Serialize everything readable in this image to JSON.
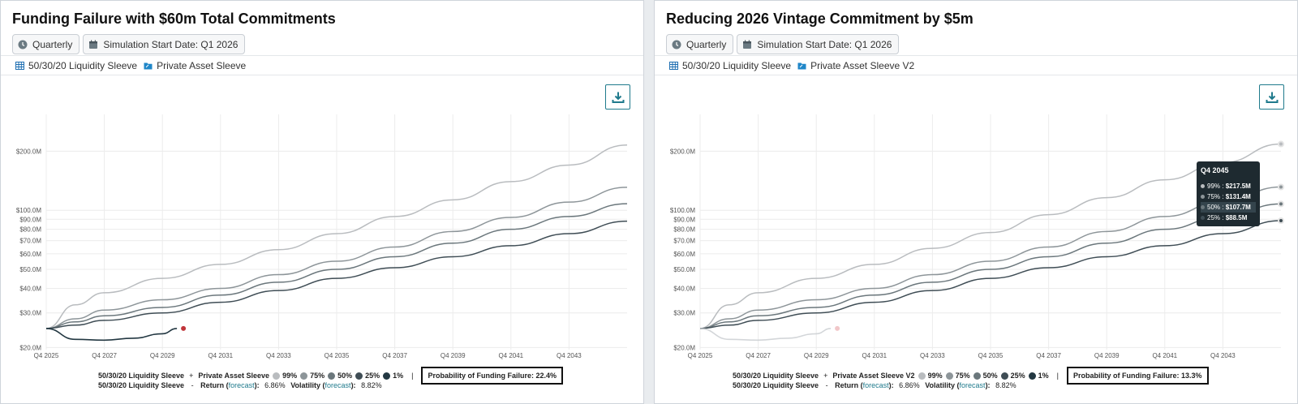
{
  "panels": [
    {
      "title": "Funding Failure with $60m Total Commitments",
      "chips": {
        "frequency": "Quarterly",
        "start": "Simulation Start Date: Q1 2026"
      },
      "sleeves": [
        "50/30/20 Liquidity Sleeve",
        "Private Asset Sleeve"
      ],
      "legend": {
        "sleeve_a": "50/30/20 Liquidity Sleeve",
        "plus": "+",
        "sleeve_b": "Private Asset Sleeve",
        "items": [
          "99%",
          "75%",
          "50%",
          "25%",
          "1%"
        ],
        "bar": "|",
        "probability": "Probability of Funding Failure: 22.4%"
      },
      "stats": {
        "sleeve": "50/30/20 Liquidity Sleeve",
        "dash": "-",
        "return_label": "Return",
        "forecast": "forecast",
        "return_value": "6.86%",
        "volatility_label": "Volatility",
        "volatility_value": "8.82%"
      }
    },
    {
      "title": "Reducing 2026 Vintage Commitment by $5m",
      "chips": {
        "frequency": "Quarterly",
        "start": "Simulation Start Date: Q1 2026"
      },
      "sleeves": [
        "50/30/20 Liquidity Sleeve",
        "Private Asset Sleeve V2"
      ],
      "legend": {
        "sleeve_a": "50/30/20 Liquidity Sleeve",
        "plus": "+",
        "sleeve_b": "Private Asset Sleeve V2",
        "items": [
          "99%",
          "75%",
          "50%",
          "25%",
          "1%"
        ],
        "bar": "|",
        "probability": "Probability of Funding Failure: 13.3%"
      },
      "stats": {
        "sleeve": "50/30/20 Liquidity Sleeve",
        "dash": "-",
        "return_label": "Return",
        "forecast": "forecast",
        "return_value": "6.86%",
        "volatility_label": "Volatility",
        "volatility_value": "8.82%"
      },
      "tooltip": {
        "title": "Q4 2045",
        "rows": [
          {
            "label": "99%",
            "sep": " : ",
            "value": "$217.5M"
          },
          {
            "label": "75%",
            "sep": " : ",
            "value": "$131.4M"
          },
          {
            "label": "50%",
            "sep": " : ",
            "value": "$107.7M"
          },
          {
            "label": "25%",
            "sep": " : ",
            "value": "$88.5M"
          }
        ]
      }
    }
  ],
  "colors": {
    "p99": "#b9bcbf",
    "p75": "#8d9599",
    "p50": "#6b777c",
    "p25": "#3f4d55",
    "p1": "#233842",
    "accent": "#1f7a8c",
    "failure_dot": "#c0353a"
  },
  "chart_data": [
    {
      "type": "line",
      "title": "Funding Failure with $60m Total Commitments",
      "y_scale": "log",
      "ylim": [
        19500000,
        280000000
      ],
      "y_ticks": [
        "$20.0M",
        "$30.0M",
        "$40.0M",
        "$50.0M",
        "$60.0M",
        "$70.0M",
        "$80.0M",
        "$90.0M",
        "$100.0M",
        "$200.0M"
      ],
      "x_ticks": [
        "Q4 2025",
        "Q4 2027",
        "Q4 2029",
        "Q4 2031",
        "Q4 2033",
        "Q4 2035",
        "Q4 2037",
        "Q4 2039",
        "Q4 2041",
        "Q4 2043"
      ],
      "x_range": [
        "Q4 2025",
        "Q4 2045"
      ],
      "series": [
        {
          "name": "99%",
          "x": [
            "Q4 2025",
            "Q4 2026",
            "Q4 2027",
            "Q4 2029",
            "Q4 2031",
            "Q4 2033",
            "Q4 2035",
            "Q4 2037",
            "Q4 2039",
            "Q4 2041",
            "Q4 2043",
            "Q4 2045"
          ],
          "values": [
            25,
            33,
            38,
            45,
            53,
            63,
            76,
            93,
            113,
            140,
            170,
            215
          ]
        },
        {
          "name": "75%",
          "x": [
            "Q4 2025",
            "Q4 2026",
            "Q4 2027",
            "Q4 2029",
            "Q4 2031",
            "Q4 2033",
            "Q4 2035",
            "Q4 2037",
            "Q4 2039",
            "Q4 2041",
            "Q4 2043",
            "Q4 2045"
          ],
          "values": [
            25,
            28,
            31,
            35,
            40,
            47,
            55,
            65,
            78,
            92,
            110,
            131
          ]
        },
        {
          "name": "50%",
          "x": [
            "Q4 2025",
            "Q4 2026",
            "Q4 2027",
            "Q4 2029",
            "Q4 2031",
            "Q4 2033",
            "Q4 2035",
            "Q4 2037",
            "Q4 2039",
            "Q4 2041",
            "Q4 2043",
            "Q4 2045"
          ],
          "values": [
            25,
            27,
            29,
            32,
            37,
            43,
            50,
            58,
            68,
            80,
            93,
            108
          ]
        },
        {
          "name": "25%",
          "x": [
            "Q4 2025",
            "Q4 2026",
            "Q4 2027",
            "Q4 2029",
            "Q4 2031",
            "Q4 2033",
            "Q4 2035",
            "Q4 2037",
            "Q4 2039",
            "Q4 2041",
            "Q4 2043",
            "Q4 2045"
          ],
          "values": [
            25,
            26,
            27.5,
            30,
            34,
            39,
            45,
            51,
            58,
            66,
            76,
            88
          ]
        },
        {
          "name": "1%",
          "x": [
            "Q4 2025",
            "Q4 2026",
            "Q4 2027",
            "Q4 2028",
            "Q4 2029",
            "Q2 2030"
          ],
          "values": [
            25,
            22,
            21.8,
            22.3,
            23.5,
            25
          ]
        }
      ],
      "annotations": [
        {
          "label": "funding failure",
          "x": "Q2 2030",
          "y": 25
        }
      ]
    },
    {
      "type": "line",
      "title": "Reducing 2026 Vintage Commitment by $5m",
      "y_scale": "log",
      "ylim": [
        19500000,
        280000000
      ],
      "y_ticks": [
        "$20.0M",
        "$30.0M",
        "$40.0M",
        "$50.0M",
        "$60.0M",
        "$70.0M",
        "$80.0M",
        "$90.0M",
        "$100.0M",
        "$200.0M"
      ],
      "x_ticks": [
        "Q4 2025",
        "Q4 2027",
        "Q4 2029",
        "Q4 2031",
        "Q4 2033",
        "Q4 2035",
        "Q4 2037",
        "Q4 2039",
        "Q4 2041",
        "Q4 2043"
      ],
      "x_range": [
        "Q4 2025",
        "Q4 2045"
      ],
      "series": [
        {
          "name": "99%",
          "x": [
            "Q4 2025",
            "Q4 2026",
            "Q4 2027",
            "Q4 2029",
            "Q4 2031",
            "Q4 2033",
            "Q4 2035",
            "Q4 2037",
            "Q4 2039",
            "Q4 2041",
            "Q4 2043",
            "Q4 2045"
          ],
          "values": [
            25,
            33,
            38,
            45,
            53,
            64,
            77,
            95,
            116,
            143,
            175,
            217.5
          ]
        },
        {
          "name": "75%",
          "x": [
            "Q4 2025",
            "Q4 2026",
            "Q4 2027",
            "Q4 2029",
            "Q4 2031",
            "Q4 2033",
            "Q4 2035",
            "Q4 2037",
            "Q4 2039",
            "Q4 2041",
            "Q4 2043",
            "Q4 2045"
          ],
          "values": [
            25,
            28,
            31,
            35,
            40,
            47,
            55,
            65,
            78,
            93,
            111,
            131.4
          ]
        },
        {
          "name": "50%",
          "x": [
            "Q4 2025",
            "Q4 2026",
            "Q4 2027",
            "Q4 2029",
            "Q4 2031",
            "Q4 2033",
            "Q4 2035",
            "Q4 2037",
            "Q4 2039",
            "Q4 2041",
            "Q4 2043",
            "Q4 2045"
          ],
          "values": [
            25,
            27,
            29,
            32,
            37,
            43,
            50,
            58,
            68,
            80,
            93,
            107.7
          ]
        },
        {
          "name": "25%",
          "x": [
            "Q4 2025",
            "Q4 2026",
            "Q4 2027",
            "Q4 2029",
            "Q4 2031",
            "Q4 2033",
            "Q4 2035",
            "Q4 2037",
            "Q4 2039",
            "Q4 2041",
            "Q4 2043",
            "Q4 2045"
          ],
          "values": [
            25,
            26,
            27.5,
            30,
            34,
            39,
            45,
            51,
            58,
            66,
            76,
            88.5
          ]
        },
        {
          "name": "1%",
          "x": [
            "Q4 2025",
            "Q4 2026",
            "Q4 2027",
            "Q4 2028",
            "Q4 2029",
            "Q2 2030"
          ],
          "values": [
            25,
            22,
            21.8,
            22.3,
            23.5,
            25
          ]
        }
      ],
      "annotations": [
        {
          "label": "funding failure",
          "x": "Q2 2030",
          "y": 25
        }
      ]
    }
  ]
}
